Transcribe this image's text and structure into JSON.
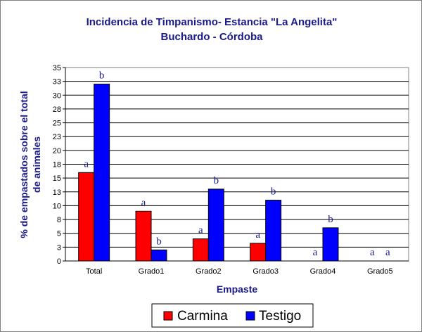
{
  "chart_data": {
    "type": "bar",
    "title": "Incidencia de Timpanismo- Estancia \"La Angelita\"",
    "subtitle": "Buchardo - Córdoba",
    "xlabel": "Empaste",
    "ylabel": "% de empastados sobre el total de animales",
    "ylabel_lines": [
      "% de empastados sobre el total",
      "de animales"
    ],
    "ylim": [
      0,
      35
    ],
    "yticks": [
      0,
      3,
      5,
      8,
      10,
      13,
      15,
      18,
      20,
      23,
      25,
      28,
      30,
      33,
      35
    ],
    "ytick_values": [
      0,
      2.5,
      5,
      7.5,
      10,
      12.5,
      15,
      17.5,
      20,
      22.5,
      25,
      27.5,
      30,
      32.5,
      35
    ],
    "grid": true,
    "legend_position": "bottom",
    "categories": [
      "Total",
      "Grado1",
      "Grado2",
      "Grado3",
      "Grado4",
      "Grado5"
    ],
    "series": [
      {
        "name": "Carmina",
        "color": "#ff0000",
        "values": [
          16,
          9,
          4,
          3.2,
          0,
          0
        ],
        "labels": [
          "a",
          "a",
          "a",
          "a",
          "a",
          "a"
        ]
      },
      {
        "name": "Testigo",
        "color": "#0000ff",
        "values": [
          32,
          2,
          13,
          11,
          6,
          0
        ],
        "labels": [
          "b",
          "b",
          "b",
          "b",
          "b",
          "a"
        ]
      }
    ]
  }
}
